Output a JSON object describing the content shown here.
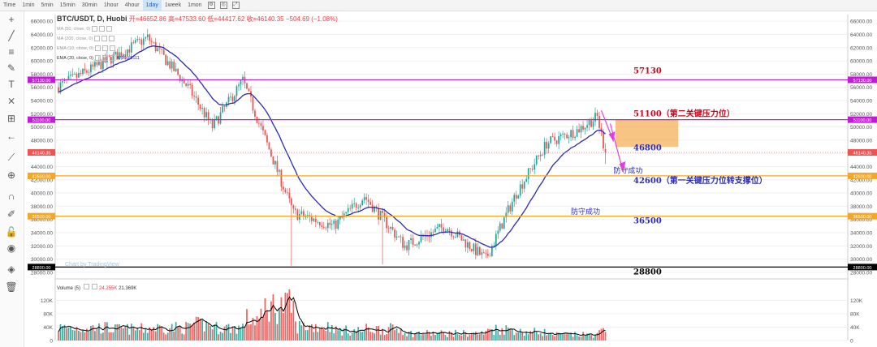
{
  "toolbar": {
    "intervals": [
      "Time",
      "1min",
      "5min",
      "15min",
      "30min",
      "1hour",
      "4hour",
      "1day",
      "1week",
      "1mon"
    ],
    "active_interval": "1day"
  },
  "legend": {
    "symbol": "BTC/USDT, D, Huobi",
    "open": "开=46652.86",
    "high": "高=47533.60",
    "low": "低=44417.62",
    "close": "收=46140.35",
    "change": "−504.69 (−1.08%)",
    "indicators": [
      "MA (50, close, 0)",
      "MA (200, close, 0)",
      "EMA (10, close, 0)",
      "EMA (20, close, 0)"
    ],
    "ema_value": "47900.8111"
  },
  "volume_legend": {
    "label": "Volume (5)",
    "value1": "24.255K",
    "value2": "21.369K"
  },
  "watermark": "Chart by TradingView",
  "colors": {
    "up": "#26a69a",
    "down": "#ef5350",
    "ema": "#2b2bb8",
    "magenta_line": "#c21ad8",
    "orange_line": "#f5a623",
    "black_line": "#000000",
    "red_label": "#d0021b",
    "blue_label": "#2b2bb8",
    "box": "#f5b05a",
    "arrow": "#e040e0"
  },
  "chart_data": {
    "type": "candlestick",
    "ylim": [
      27500,
      67000
    ],
    "y_ticks": [
      28000,
      30000,
      32000,
      34000,
      36000,
      38000,
      40000,
      42000,
      44000,
      46000,
      48000,
      50000,
      52000,
      54000,
      56000,
      58000,
      60000,
      62000,
      64000,
      66000
    ],
    "ohlc_segments": [
      {
        "from": 56000,
        "to": 60000,
        "n": 25,
        "vol": 45
      },
      {
        "from": 60000,
        "to": 63500,
        "n": 20,
        "vol": 40
      },
      {
        "from": 63500,
        "to": 56000,
        "n": 20,
        "vol": 45
      },
      {
        "from": 56000,
        "to": 50000,
        "n": 12,
        "vol": 55
      },
      {
        "from": 50000,
        "to": 57000,
        "n": 15,
        "vol": 45
      },
      {
        "from": 57000,
        "to": 49000,
        "n": 10,
        "vol": 75
      },
      {
        "from": 49000,
        "to": 37000,
        "n": 15,
        "vol": 120
      },
      {
        "from": 37000,
        "to": 35000,
        "n": 20,
        "vol": 50
      },
      {
        "from": 35000,
        "to": 39500,
        "n": 15,
        "vol": 35
      },
      {
        "from": 39500,
        "to": 32000,
        "n": 20,
        "vol": 40
      },
      {
        "from": 32000,
        "to": 35000,
        "n": 20,
        "vol": 25
      },
      {
        "from": 35000,
        "to": 30000,
        "n": 20,
        "vol": 25
      },
      {
        "from": 30000,
        "to": 40000,
        "n": 15,
        "vol": 40
      },
      {
        "from": 40000,
        "to": 47500,
        "n": 15,
        "vol": 30
      },
      {
        "from": 47500,
        "to": 49500,
        "n": 15,
        "vol": 20
      },
      {
        "from": 49500,
        "to": 51500,
        "n": 10,
        "vol": 20
      },
      {
        "from": 51500,
        "to": 46140,
        "n": 4,
        "vol": 30
      }
    ],
    "last_price": 46140.35,
    "levels": [
      {
        "value": 57130,
        "tag": "57130.00",
        "color": "#c21ad8",
        "label": "57130",
        "label_color": "#d0021b"
      },
      {
        "value": 51100,
        "tag": "51100.00",
        "color": "#c21ad8",
        "label": "51100（第二关键压力位）",
        "label_color": "#d0021b"
      },
      {
        "value": 42600,
        "tag": "42600.00",
        "color": "#f5a623",
        "label": "42600（第一关键压力位转支撑位）",
        "label_color": "#2b2bb8"
      },
      {
        "value": 36500,
        "tag": "36500.00",
        "color": "#f5a623",
        "label": "36500",
        "label_color": "#2b2bb8"
      },
      {
        "value": 28800,
        "tag": "28800.00",
        "color": "#000000",
        "label": "28800",
        "label_color": "#000000"
      }
    ],
    "price_tag": "46140.35",
    "extra_label": {
      "value": 46800,
      "text": "46800"
    },
    "annotations": [
      {
        "text": "防守成功",
        "x_index": 286,
        "y": 43000
      },
      {
        "text": "防守成功",
        "x_index": 265,
        "y": 36800
      }
    ],
    "box": {
      "x_from": 275,
      "x_to": 306,
      "y_low": 47000,
      "y_high": 51100
    },
    "vol_ylim": [
      0,
      160
    ],
    "vol_ticks": [
      0,
      40,
      80,
      120
    ],
    "vol_tick_labels": [
      "0",
      "40K",
      "80K",
      "120K"
    ]
  }
}
